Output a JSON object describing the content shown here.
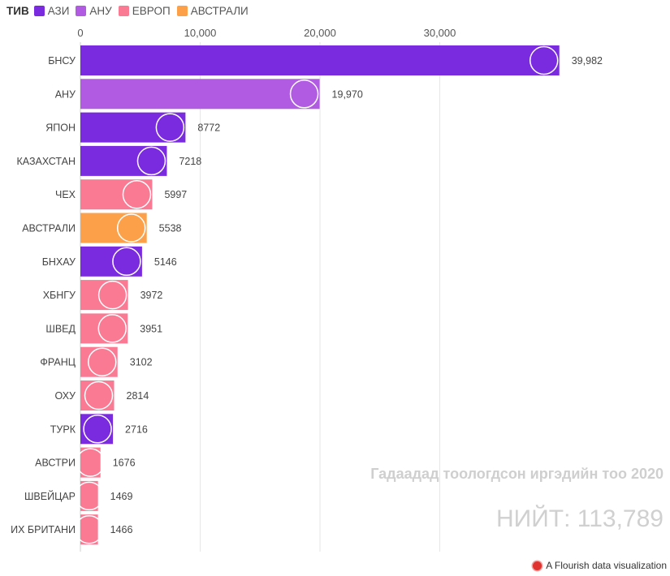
{
  "legend": {
    "title": "ТИВ",
    "items": [
      {
        "label": "АЗИ",
        "color": "#7a2be0"
      },
      {
        "label": "АНУ",
        "color": "#b05be2"
      },
      {
        "label": "ЕВРОП",
        "color": "#fb7a93"
      },
      {
        "label": "АВСТРАЛИ",
        "color": "#fca14a"
      }
    ]
  },
  "annotation": {
    "title": "Гадаадад тоологдсон иргэдийн тоо 2020",
    "total": "НИЙТ: 113,789"
  },
  "attribution": "A Flourish data visualization",
  "chart_data": {
    "type": "bar",
    "orientation": "horizontal",
    "xlim": [
      0,
      40000
    ],
    "ticks": [
      0,
      10000,
      20000,
      30000
    ],
    "tick_labels": [
      "0",
      "10,000",
      "20,000",
      "30,000"
    ],
    "grid": true,
    "legend_position": "top-left",
    "rows": [
      {
        "category": "БНСУ",
        "value": 39982,
        "value_label": "39,982",
        "group": "АЗИ",
        "flag": "south-korea-flag"
      },
      {
        "category": "АНУ",
        "value": 19970,
        "value_label": "19,970",
        "group": "АНУ",
        "flag": "usa-flag"
      },
      {
        "category": "ЯПОН",
        "value": 8772,
        "value_label": "8772",
        "group": "АЗИ",
        "flag": "japan-flag"
      },
      {
        "category": "КАЗАХСТАН",
        "value": 7218,
        "value_label": "7218",
        "group": "АЗИ",
        "flag": "kazakhstan-flag"
      },
      {
        "category": "ЧЕХ",
        "value": 5997,
        "value_label": "5997",
        "group": "ЕВРОП",
        "flag": "czech-flag"
      },
      {
        "category": "АВСТРАЛИ",
        "value": 5538,
        "value_label": "5538",
        "group": "АВСТРАЛИ",
        "flag": "australia-flag"
      },
      {
        "category": "БНХАУ",
        "value": 5146,
        "value_label": "5146",
        "group": "АЗИ",
        "flag": "china-flag"
      },
      {
        "category": "ХБНГУ",
        "value": 3972,
        "value_label": "3972",
        "group": "ЕВРОП",
        "flag": "germany-flag"
      },
      {
        "category": "ШВЕД",
        "value": 3951,
        "value_label": "3951",
        "group": "ЕВРОП",
        "flag": "sweden-flag"
      },
      {
        "category": "ФРАНЦ",
        "value": 3102,
        "value_label": "3102",
        "group": "ЕВРОП",
        "flag": "france-flag"
      },
      {
        "category": "ОХУ",
        "value": 2814,
        "value_label": "2814",
        "group": "ЕВРОП",
        "flag": "russia-flag"
      },
      {
        "category": "ТУРК",
        "value": 2716,
        "value_label": "2716",
        "group": "АЗИ",
        "flag": "turkey-flag"
      },
      {
        "category": "АВСТРИ",
        "value": 1676,
        "value_label": "1676",
        "group": "ЕВРОП",
        "flag": "austria-flag"
      },
      {
        "category": "ШВЕЙЦАР",
        "value": 1469,
        "value_label": "1469",
        "group": "ЕВРОП",
        "flag": "switzerland-flag"
      },
      {
        "category": "ИХ БРИТАНИ",
        "value": 1466,
        "value_label": "1466",
        "group": "ЕВРОП",
        "flag": "uk-flag"
      }
    ]
  }
}
